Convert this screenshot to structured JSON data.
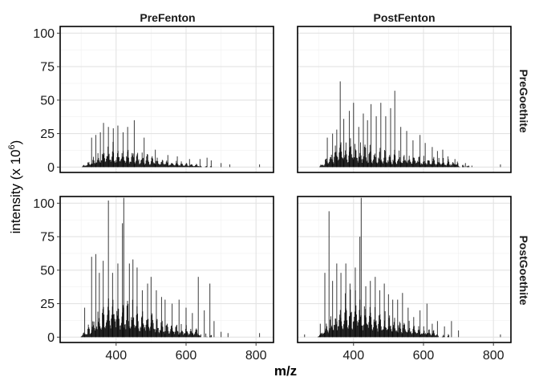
{
  "chart_data": {
    "type": "bar",
    "subtype": "faceted mass spectrum (stick plot)",
    "xlabel": "m/z",
    "ylabel": "intensity (x 10",
    "ylabel_exponent": "6",
    "ylabel_close": ")",
    "xlim": [
      240,
      850
    ],
    "ylim": [
      -4,
      105
    ],
    "x_ticks": [
      400,
      600,
      800
    ],
    "x_tick_labels": [
      "400",
      "600",
      "800"
    ],
    "y_ticks": [
      0,
      25,
      50,
      75,
      100
    ],
    "y_tick_labels": [
      "0",
      "25",
      "50",
      "75",
      "100"
    ],
    "grid": true,
    "facet_columns": [
      "PreFenton",
      "PostFenton"
    ],
    "facet_rows": [
      "PreGoethite",
      "PostGoethite"
    ],
    "bar_color": "#000000",
    "panels": [
      {
        "column": "PreFenton",
        "row": "PreGoethite",
        "envelope": {
          "start": 300,
          "peak": 380,
          "peak_value": 17,
          "end": 640,
          "tail_value": 2
        },
        "prominent_peaks": [
          [
            330,
            22
          ],
          [
            342,
            24
          ],
          [
            355,
            26
          ],
          [
            364,
            33
          ],
          [
            378,
            30
          ],
          [
            392,
            29
          ],
          [
            405,
            31
          ],
          [
            420,
            26
          ],
          [
            433,
            30
          ],
          [
            452,
            35
          ],
          [
            480,
            22
          ],
          [
            512,
            13
          ],
          [
            548,
            9
          ],
          [
            575,
            8
          ],
          [
            610,
            6
          ],
          [
            640,
            6
          ],
          [
            660,
            7
          ],
          [
            672,
            5
          ],
          [
            700,
            3
          ],
          [
            725,
            2
          ],
          [
            810,
            2
          ]
        ]
      },
      {
        "column": "PostFenton",
        "row": "PreGoethite",
        "envelope": {
          "start": 300,
          "peak": 360,
          "peak_value": 20,
          "end": 700,
          "tail_value": 5
        },
        "prominent_peaks": [
          [
            325,
            22
          ],
          [
            340,
            25
          ],
          [
            352,
            28
          ],
          [
            362,
            64
          ],
          [
            372,
            36
          ],
          [
            388,
            42
          ],
          [
            400,
            48
          ],
          [
            415,
            30
          ],
          [
            428,
            40
          ],
          [
            440,
            35
          ],
          [
            450,
            47
          ],
          [
            465,
            38
          ],
          [
            478,
            48
          ],
          [
            492,
            38
          ],
          [
            506,
            44
          ],
          [
            518,
            57
          ],
          [
            535,
            30
          ],
          [
            552,
            27
          ],
          [
            570,
            20
          ],
          [
            590,
            24
          ],
          [
            605,
            18
          ],
          [
            625,
            15
          ],
          [
            640,
            12
          ],
          [
            655,
            13
          ],
          [
            670,
            8
          ],
          [
            690,
            6
          ],
          [
            720,
            3
          ],
          [
            820,
            2
          ]
        ]
      },
      {
        "column": "PreFenton",
        "row": "PostGoethite",
        "envelope": {
          "start": 295,
          "peak": 390,
          "peak_value": 32,
          "end": 640,
          "tail_value": 6
        },
        "prominent_peaks": [
          [
            310,
            22
          ],
          [
            330,
            60
          ],
          [
            342,
            62
          ],
          [
            352,
            48
          ],
          [
            363,
            57
          ],
          [
            378,
            102
          ],
          [
            390,
            48
          ],
          [
            405,
            55
          ],
          [
            418,
            85
          ],
          [
            422,
            104
          ],
          [
            438,
            55
          ],
          [
            448,
            58
          ],
          [
            460,
            52
          ],
          [
            475,
            35
          ],
          [
            490,
            40
          ],
          [
            500,
            45
          ],
          [
            515,
            35
          ],
          [
            530,
            30
          ],
          [
            540,
            28
          ],
          [
            560,
            25
          ],
          [
            580,
            28
          ],
          [
            600,
            22
          ],
          [
            618,
            18
          ],
          [
            635,
            45
          ],
          [
            652,
            20
          ],
          [
            668,
            40
          ],
          [
            680,
            12
          ],
          [
            700,
            4
          ],
          [
            720,
            3
          ],
          [
            810,
            3
          ]
        ]
      },
      {
        "column": "PostFenton",
        "row": "PostGoethite",
        "envelope": {
          "start": 295,
          "peak": 380,
          "peak_value": 33,
          "end": 640,
          "tail_value": 5
        },
        "prominent_peaks": [
          [
            305,
            10
          ],
          [
            318,
            48
          ],
          [
            330,
            94
          ],
          [
            340,
            42
          ],
          [
            352,
            55
          ],
          [
            364,
            48
          ],
          [
            378,
            55
          ],
          [
            390,
            40
          ],
          [
            405,
            52
          ],
          [
            418,
            75
          ],
          [
            422,
            104
          ],
          [
            435,
            38
          ],
          [
            448,
            42
          ],
          [
            462,
            45
          ],
          [
            475,
            35
          ],
          [
            488,
            40
          ],
          [
            500,
            32
          ],
          [
            512,
            28
          ],
          [
            526,
            28
          ],
          [
            540,
            33
          ],
          [
            556,
            22
          ],
          [
            572,
            15
          ],
          [
            590,
            20
          ],
          [
            610,
            25
          ],
          [
            625,
            10
          ],
          [
            640,
            12
          ],
          [
            660,
            8
          ],
          [
            680,
            12
          ],
          [
            700,
            5
          ],
          [
            820,
            2
          ],
          [
            260,
            2
          ]
        ]
      }
    ]
  }
}
